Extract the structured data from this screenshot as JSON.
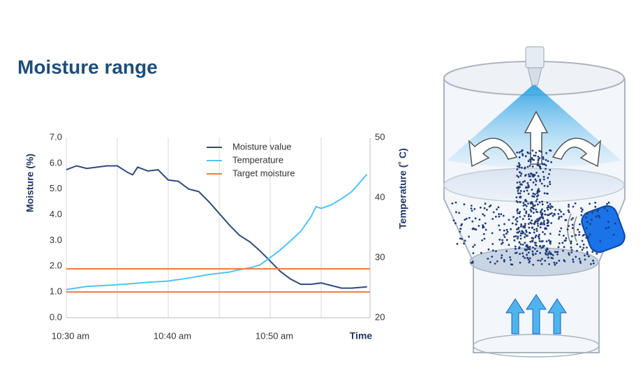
{
  "chart_data": {
    "type": "line",
    "title": "Moisture range",
    "ylabel": "Moisture (%)",
    "y2label": "Temperature (˚ C)",
    "xlabel": "Time",
    "xlim": [
      0,
      30
    ],
    "xticks": [
      {
        "value": 0,
        "label": "10:30 am"
      },
      {
        "value": 5,
        "label": null
      },
      {
        "value": 10,
        "label": "10:40 am"
      },
      {
        "value": 15,
        "label": null
      },
      {
        "value": 20,
        "label": "10:50 am"
      },
      {
        "value": 25,
        "label": null
      }
    ],
    "ylim": [
      0,
      7
    ],
    "yticks": [
      {
        "value": 0,
        "label": "0.0"
      },
      {
        "value": 1,
        "label": "1.0"
      },
      {
        "value": 2,
        "label": "2.0"
      },
      {
        "value": 3,
        "label": "3.0"
      },
      {
        "value": 4,
        "label": "4.0"
      },
      {
        "value": 5,
        "label": "5.0"
      },
      {
        "value": 6,
        "label": "6.0"
      },
      {
        "value": 7,
        "label": "7.0"
      }
    ],
    "y2lim": [
      20,
      50
    ],
    "y2ticks": [
      20,
      30,
      40,
      50
    ],
    "grid": true,
    "legend": "top",
    "series": [
      {
        "name": "Moisture value",
        "color": "#2e4a7d",
        "x": [
          0,
          1,
          2,
          3,
          4,
          5,
          6,
          6.5,
          7,
          8,
          9,
          10,
          11,
          12,
          13,
          14,
          15,
          16,
          17,
          18,
          19,
          20,
          21,
          22,
          23,
          24,
          25,
          26,
          27,
          28,
          29.5
        ],
        "values": [
          5.75,
          5.9,
          5.8,
          5.85,
          5.9,
          5.9,
          5.65,
          5.55,
          5.85,
          5.7,
          5.75,
          5.35,
          5.3,
          5.0,
          4.9,
          4.5,
          4.05,
          3.6,
          3.2,
          2.95,
          2.6,
          2.2,
          1.8,
          1.5,
          1.3,
          1.3,
          1.35,
          1.25,
          1.15,
          1.15,
          1.2
        ]
      },
      {
        "name": "Temperature",
        "color": "#4fc3f7",
        "axis": "y2",
        "x": [
          0,
          2,
          4,
          6,
          8,
          10,
          12,
          14,
          16,
          17,
          18,
          19,
          20,
          21,
          22,
          23,
          24,
          24.5,
          25,
          26,
          27,
          28,
          29.5
        ],
        "values": [
          24.7,
          25.2,
          25.4,
          25.6,
          25.9,
          26.1,
          26.6,
          27.2,
          27.6,
          28.0,
          28.3,
          28.8,
          30.0,
          31.3,
          32.8,
          34.4,
          36.8,
          38.5,
          38.2,
          38.8,
          39.8,
          41.0,
          43.9
        ]
      },
      {
        "name": "Target moisture",
        "color": "#f07a47",
        "kind": "hline",
        "values": [
          1.0,
          1.9
        ]
      }
    ]
  }
}
